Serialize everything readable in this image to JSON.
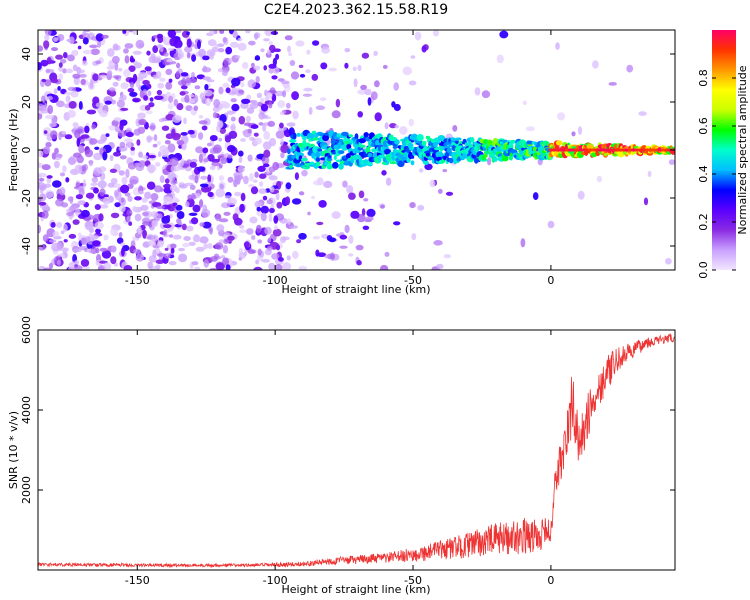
{
  "figure": {
    "title": "C2E4.2023.362.15.58.R19"
  },
  "chart_data": [
    {
      "type": "heatmap",
      "xlabel": "Height of straight line (km)",
      "ylabel": "Frequency (Hz)",
      "xlim": [
        -186,
        45
      ],
      "ylim": [
        -50,
        50
      ],
      "xticks": [
        -150,
        -100,
        -50,
        0
      ],
      "yticks": [
        -40,
        -20,
        0,
        20,
        40
      ],
      "colorbar": {
        "label": "Normalized spectral amplitude",
        "range": [
          0,
          1
        ],
        "ticks": [
          0.0,
          0.2,
          0.4,
          0.6,
          0.8
        ],
        "colormap": "rainbow",
        "stops": [
          "#f2e6ff",
          "#c9a0ff",
          "#8a2be2",
          "#5a00ff",
          "#0000ff",
          "#00bfff",
          "#00ffcc",
          "#00ff00",
          "#ccff00",
          "#ffff00",
          "#ff9900",
          "#ff3300",
          "#ff0066"
        ]
      },
      "signal_band": {
        "center_frequency_hz": 0,
        "onset_height_km": -95,
        "strong_from_km": 0
      },
      "noise": {
        "dense_region_km": [
          -186,
          -95
        ],
        "sparse_region_km": [
          -95,
          -30
        ]
      }
    },
    {
      "type": "line",
      "xlabel": "Height of straight line (km)",
      "ylabel": "SNR (10 * v/v)",
      "xlim": [
        -186,
        45
      ],
      "ylim": [
        0,
        6000
      ],
      "xticks": [
        -150,
        -100,
        -50,
        0
      ],
      "yticks": [
        2000,
        4000,
        6000
      ],
      "series": [
        {
          "color": "#ee3333",
          "x": [
            -186,
            -170,
            -150,
            -130,
            -110,
            -100,
            -90,
            -80,
            -70,
            -60,
            -50,
            -40,
            -30,
            -20,
            -10,
            -5,
            0,
            2,
            5,
            8,
            10,
            12,
            15,
            20,
            25,
            30,
            35,
            40,
            45
          ],
          "y": [
            140,
            130,
            120,
            120,
            120,
            130,
            150,
            220,
            260,
            300,
            380,
            500,
            620,
            780,
            850,
            850,
            1000,
            2400,
            3000,
            4300,
            3000,
            3500,
            4200,
            4900,
            5300,
            5500,
            5700,
            5750,
            5800
          ],
          "noise_amplitude": [
            40,
            40,
            40,
            40,
            40,
            50,
            60,
            90,
            110,
            130,
            180,
            250,
            320,
            400,
            450,
            450,
            300,
            500,
            700,
            800,
            700,
            600,
            550,
            450,
            300,
            200,
            150,
            120,
            120
          ]
        }
      ]
    }
  ]
}
